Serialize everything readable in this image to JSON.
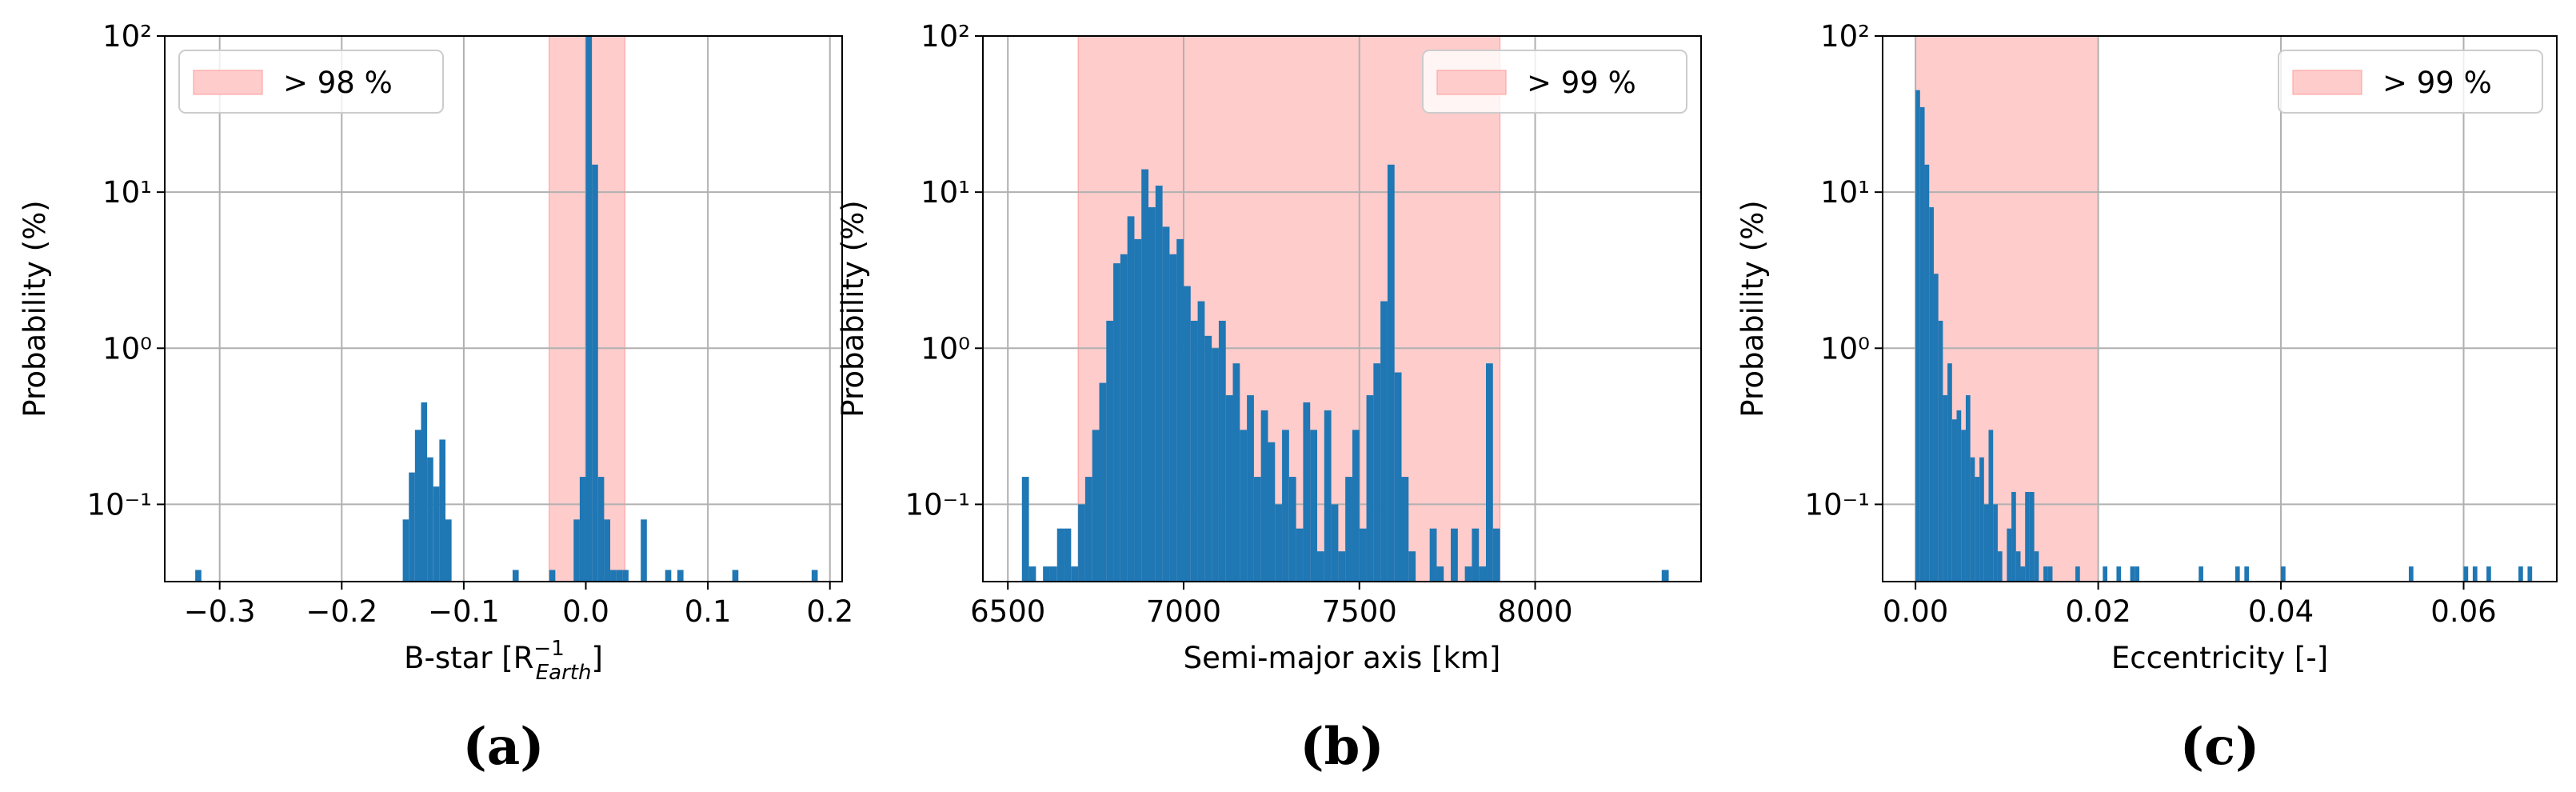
{
  "chart_data": [
    {
      "type": "histogram",
      "caption": "(a)",
      "ylabel": "Probability (%)",
      "xlabel": {
        "text": "B-star [R",
        "sup": "−1",
        "sub": "Earth",
        "tail": "]"
      },
      "yscale": "log",
      "grid": true,
      "color": "#1f77b4",
      "xlim": [
        -0.345,
        0.21
      ],
      "ylim": [
        0.032,
        100
      ],
      "xticks": [
        {
          "value": -0.3,
          "label": "−0.3"
        },
        {
          "value": -0.2,
          "label": "−0.2"
        },
        {
          "value": -0.1,
          "label": "−0.1"
        },
        {
          "value": 0,
          "label": "0.0"
        },
        0.1,
        0.2
      ],
      "yticks": [
        {
          "value": 0.1,
          "label": "10⁻¹"
        },
        {
          "value": 1,
          "label": "10⁰"
        },
        {
          "value": 10,
          "label": "10¹"
        },
        {
          "value": 100,
          "label": "10²"
        }
      ],
      "span": {
        "range": [
          -0.03,
          0.032
        ],
        "label": "> 98 %",
        "color": "#ffcccc"
      },
      "legend": "upper left",
      "bins": [
        -0.32,
        -0.315,
        -0.15,
        -0.145,
        -0.14,
        -0.135,
        -0.13,
        -0.125,
        -0.12,
        -0.115,
        -0.11,
        -0.06,
        -0.055,
        -0.03,
        -0.025,
        -0.01,
        -0.005,
        0,
        0.005,
        0.01,
        0.015,
        0.02,
        0.025,
        0.03,
        0.035,
        0.045,
        0.05,
        0.065,
        0.07,
        0.075,
        0.08,
        0.12,
        0.125,
        0.185,
        0.19
      ],
      "values": [
        0.038,
        0,
        0.08,
        0.16,
        0.3,
        0.45,
        0.2,
        0.13,
        0.26,
        0.08,
        0,
        0.038,
        0,
        0.038,
        0,
        0.08,
        0.15,
        100,
        15,
        0.15,
        0.08,
        0.038,
        0.038,
        0.038,
        0,
        0.08,
        0,
        0.038,
        0,
        0.038,
        0,
        0.038,
        0,
        0.038
      ]
    },
    {
      "type": "histogram",
      "caption": "(b)",
      "ylabel": "Probability (%)",
      "xlabel": "Semi-major axis [km]",
      "yscale": "log",
      "grid": true,
      "color": "#1f77b4",
      "xlim": [
        6429,
        8472
      ],
      "ylim": [
        0.032,
        100
      ],
      "xticks": [
        6500,
        7000,
        7500,
        8000
      ],
      "yticks": [
        {
          "value": 0.1,
          "label": "10⁻¹"
        },
        {
          "value": 1,
          "label": "10⁰"
        },
        {
          "value": 10,
          "label": "10¹"
        },
        {
          "value": 100,
          "label": "10²"
        }
      ],
      "span": {
        "range": [
          6700,
          7900
        ],
        "label": "> 99 %",
        "color": "#ffcccc"
      },
      "legend": "upper right",
      "bins": [
        6540,
        6560,
        6580,
        6600,
        6620,
        6640,
        6660,
        6680,
        6700,
        6720,
        6740,
        6760,
        6780,
        6800,
        6820,
        6840,
        6860,
        6880,
        6900,
        6920,
        6940,
        6960,
        6980,
        7000,
        7020,
        7040,
        7060,
        7080,
        7100,
        7120,
        7140,
        7160,
        7180,
        7200,
        7220,
        7240,
        7260,
        7280,
        7300,
        7320,
        7340,
        7360,
        7380,
        7400,
        7420,
        7440,
        7460,
        7480,
        7500,
        7520,
        7540,
        7560,
        7580,
        7600,
        7620,
        7640,
        7660,
        7680,
        7700,
        7720,
        7740,
        7760,
        7780,
        7800,
        7820,
        7840,
        7860,
        7880,
        7900,
        8360,
        8380
      ],
      "values": [
        0.15,
        0.04,
        0,
        0.04,
        0.04,
        0.07,
        0.07,
        0.04,
        0.1,
        0.15,
        0.3,
        0.6,
        1.5,
        3.5,
        4,
        7,
        5,
        14,
        8,
        11,
        6,
        4,
        5,
        2.5,
        1.5,
        2,
        1.2,
        1,
        1.5,
        0.5,
        0.8,
        0.3,
        0.5,
        0.15,
        0.4,
        0.25,
        0.1,
        0.3,
        0.15,
        0.07,
        0.45,
        0.3,
        0.05,
        0.4,
        0.1,
        0.05,
        0.15,
        0.3,
        0.07,
        0.5,
        0.8,
        2,
        15,
        0.7,
        0.15,
        0.05,
        0,
        0,
        0.07,
        0.04,
        0,
        0.07,
        0,
        0.04,
        0.07,
        0.04,
        0.8,
        0.07,
        0,
        0.038
      ]
    },
    {
      "type": "histogram",
      "caption": "(c)",
      "ylabel": "Probability (%)",
      "xlabel": "Eccentricity [-]",
      "yscale": "log",
      "grid": true,
      "color": "#1f77b4",
      "xlim": [
        -0.0036,
        0.0702
      ],
      "ylim": [
        0.032,
        100
      ],
      "xticks": [
        {
          "value": 0,
          "label": "0.00"
        },
        {
          "value": 0.02,
          "label": "0.02"
        },
        {
          "value": 0.04,
          "label": "0.04"
        },
        {
          "value": 0.06,
          "label": "0.06"
        }
      ],
      "yticks": [
        {
          "value": 0.1,
          "label": "10⁻¹"
        },
        {
          "value": 1,
          "label": "10⁰"
        },
        {
          "value": 10,
          "label": "10¹"
        },
        {
          "value": 100,
          "label": "10²"
        }
      ],
      "span": {
        "range": [
          0,
          0.02
        ],
        "label": "> 99 %",
        "color": "#ffcccc"
      },
      "legend": "upper right",
      "bins": [
        0,
        0.0005,
        0.001,
        0.0015,
        0.002,
        0.0025,
        0.003,
        0.0035,
        0.004,
        0.0045,
        0.005,
        0.0055,
        0.006,
        0.0065,
        0.007,
        0.0075,
        0.008,
        0.0085,
        0.009,
        0.0095,
        0.01,
        0.0105,
        0.011,
        0.0115,
        0.012,
        0.0125,
        0.013,
        0.0135,
        0.014,
        0.0145,
        0.015,
        0.0175,
        0.018,
        0.0205,
        0.021,
        0.022,
        0.0225,
        0.0235,
        0.024,
        0.0245,
        0.031,
        0.0315,
        0.035,
        0.0355,
        0.036,
        0.0365,
        0.04,
        0.0405,
        0.054,
        0.0545,
        0.06,
        0.0605,
        0.061,
        0.0615,
        0.0625,
        0.063,
        0.066,
        0.0665,
        0.067,
        0.0675
      ],
      "values": [
        45,
        35,
        15,
        8,
        3,
        1.5,
        0.5,
        0.8,
        0.35,
        0.4,
        0.3,
        0.5,
        0.2,
        0.15,
        0.2,
        0.1,
        0.3,
        0.1,
        0.05,
        0,
        0.07,
        0.12,
        0.05,
        0.04,
        0.12,
        0.12,
        0.05,
        0,
        0.04,
        0.04,
        0,
        0.04,
        0,
        0.04,
        0,
        0.04,
        0,
        0.04,
        0.04,
        0,
        0.04,
        0,
        0.04,
        0,
        0.04,
        0,
        0.04,
        0,
        0.04,
        0,
        0.04,
        0,
        0.04,
        0,
        0.04,
        0,
        0.04,
        0,
        0.04
      ]
    }
  ]
}
